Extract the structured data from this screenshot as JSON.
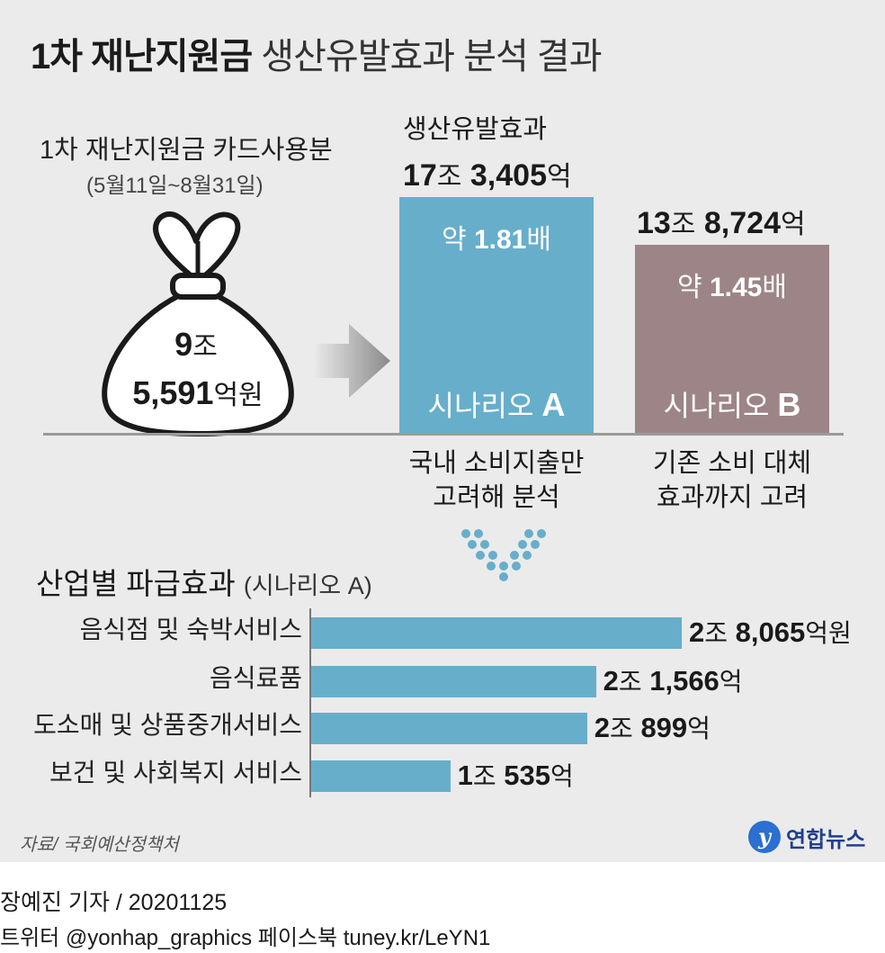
{
  "title": {
    "bold": "1차 재난지원금",
    "rest": "생산유발효과 분석 결과"
  },
  "card": {
    "label": "1차 재난지원금 카드사용분",
    "period": "(5월11일~8월31일)",
    "amount_line1_num": "9",
    "amount_line1_unit": "조",
    "amount_line2_num": "5,591",
    "amount_line2_unit": "억원"
  },
  "effect_label": "생산유발효과",
  "colors": {
    "scenario_a": "#67aecb",
    "scenario_b": "#9d8587",
    "panel": "#ebebeb"
  },
  "chart_data": [
    {
      "type": "bar",
      "categories": [
        "시나리오 A",
        "시나리오 B"
      ],
      "values": [
        173405,
        138724
      ],
      "unit": "억원",
      "series": [
        {
          "name": "시나리오 A",
          "value_label_num1": "17",
          "value_label_unit1": "조",
          "value_label_num2": "3,405",
          "value_label_unit2": "억",
          "ratio_prefix": "약 ",
          "ratio_num": "1.81",
          "ratio_unit": "배",
          "scenario_word": "시나리오 ",
          "scenario_letter": "A",
          "desc_line1": "국내 소비지출만",
          "desc_line2": "고려해 분석"
        },
        {
          "name": "시나리오 B",
          "value_label_num1": "13",
          "value_label_unit1": "조",
          "value_label_num2": "8,724",
          "value_label_unit2": "억",
          "ratio_prefix": "약 ",
          "ratio_num": "1.45",
          "ratio_unit": "배",
          "scenario_word": "시나리오 ",
          "scenario_letter": "B",
          "desc_line1": "기존 소비 대체",
          "desc_line2": "효과까지 고려"
        }
      ]
    },
    {
      "type": "bar",
      "orientation": "horizontal",
      "title": "산업별 파급효과",
      "subtitle": "(시나리오 A)",
      "categories": [
        "음식점 및 숙박서비스",
        "음식료품",
        "도소매 및 상품중개서비스",
        "보건 및 사회복지 서비스"
      ],
      "values": [
        28065,
        21566,
        20899,
        10535
      ],
      "unit": "억원",
      "labels": [
        {
          "num1": "2",
          "unit1": "조",
          "num2": "8,065",
          "unit2": "억원"
        },
        {
          "num1": "2",
          "unit1": "조",
          "num2": "1,566",
          "unit2": "억"
        },
        {
          "num1": "2",
          "unit1": "조",
          "num2": "899",
          "unit2": "억"
        },
        {
          "num1": "1",
          "unit1": "조",
          "num2": "535",
          "unit2": "억"
        }
      ]
    }
  ],
  "source": "자료/ 국회예산정책처",
  "logo": "연합뉴스",
  "footer": {
    "line1": "장예진 기자 / 20201125",
    "line2": "트위터 @yonhap_graphics  페이스북 tuney.kr/LeYN1"
  }
}
